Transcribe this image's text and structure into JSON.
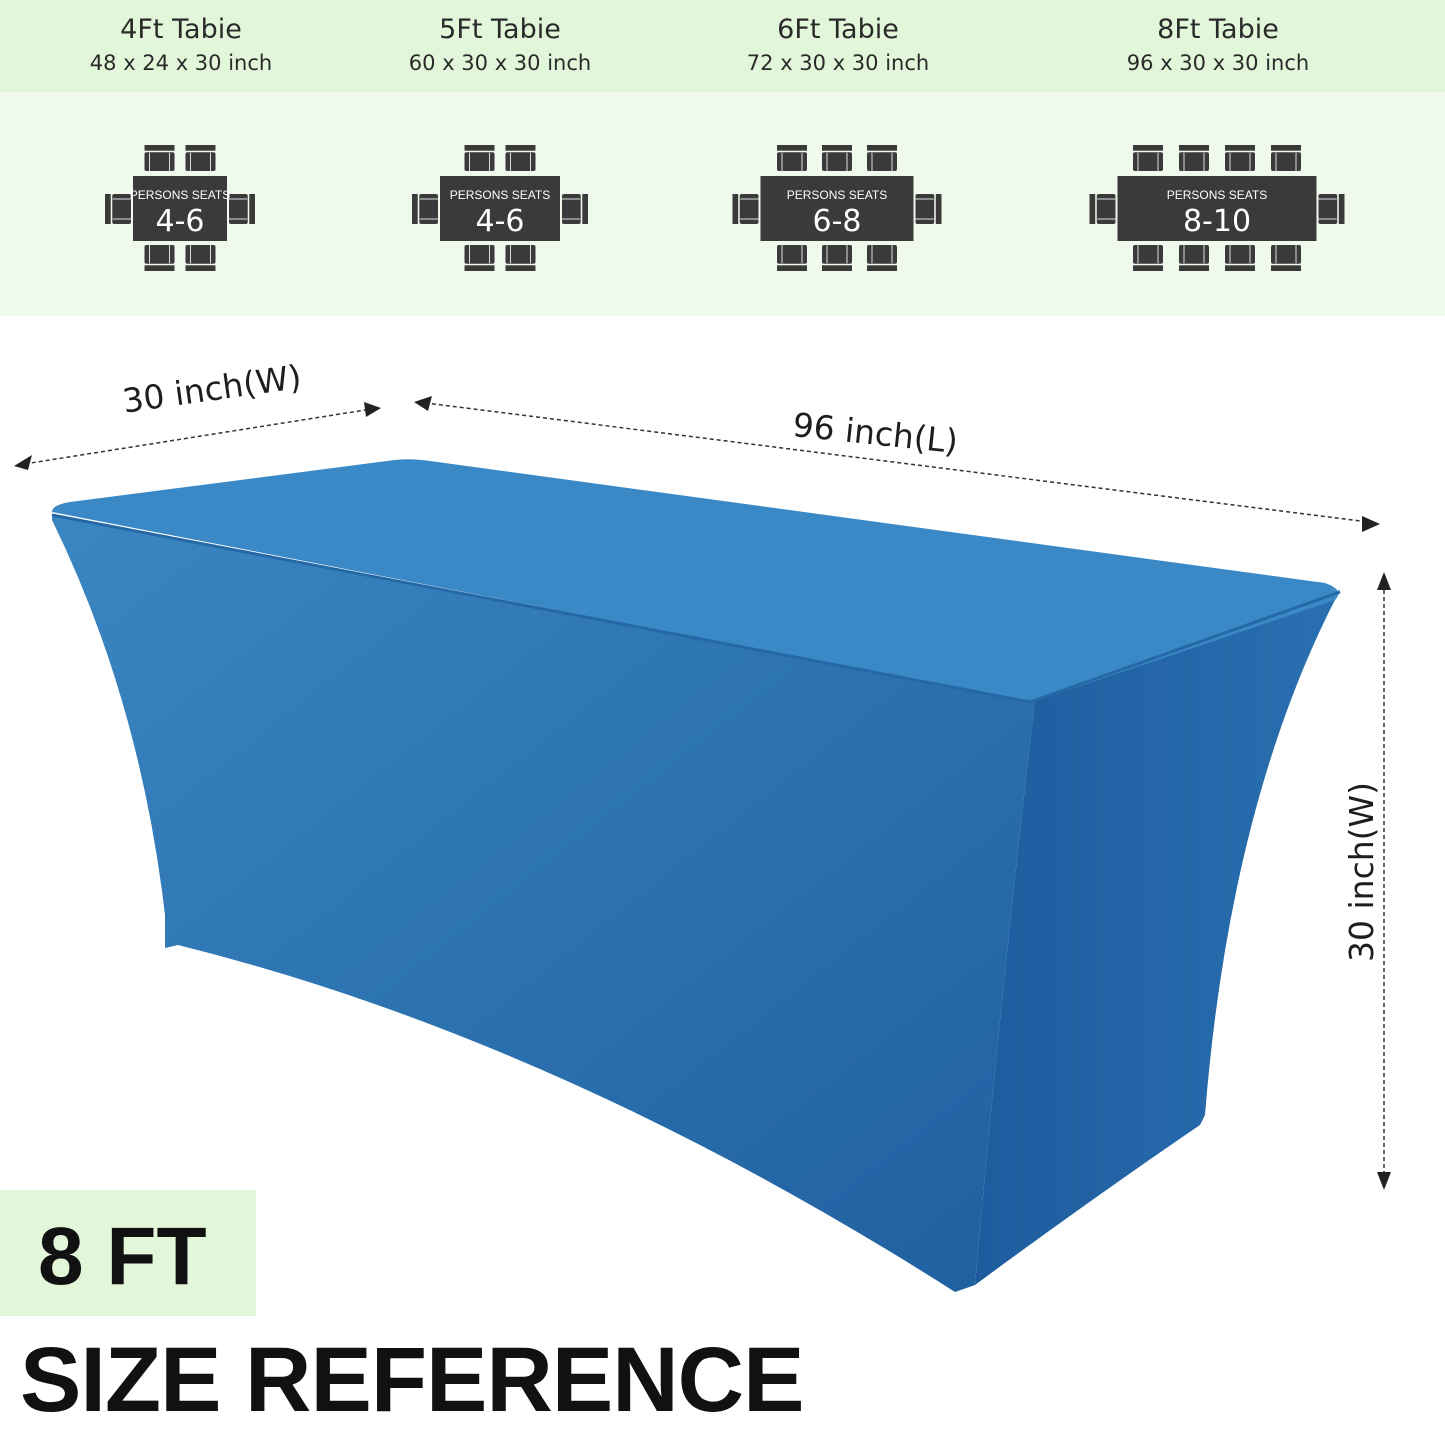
{
  "sizes": [
    {
      "title": "4Ft  Tabie",
      "dims": "48 x 24 x 30 inch",
      "seats_label": "PERSONS SEATS",
      "seats": "4-6",
      "chairs_per_long_side": 2
    },
    {
      "title": "5Ft  Tabie",
      "dims": "60 x 30 x 30 inch",
      "seats_label": "PERSONS SEATS",
      "seats": "4-6",
      "chairs_per_long_side": 2
    },
    {
      "title": "6Ft  Tabie",
      "dims": "72 x 30 x 30 inch",
      "seats_label": "PERSONS SEATS",
      "seats": "6-8",
      "chairs_per_long_side": 3
    },
    {
      "title": "8Ft  Tabie",
      "dims": "96 x 30 x 30 inch",
      "seats_label": "PERSONS SEATS",
      "seats": "8-10",
      "chairs_per_long_side": 4
    }
  ],
  "dimensions": {
    "width": "30 inch(W)",
    "length": "96 inch(L)",
    "height": "30 inch(W)"
  },
  "badge": "8 FT",
  "heading": "SIZE REFERENCE",
  "colors": {
    "cover": "#2f76b2",
    "header_band": "#e2f6da",
    "diagram_band": "#eff9ec",
    "diagram": "#3a3a3a"
  }
}
